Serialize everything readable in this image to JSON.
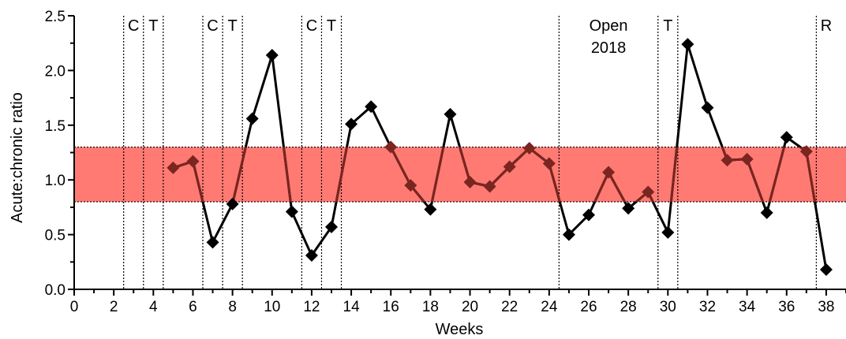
{
  "chart_data": {
    "type": "line",
    "title": "",
    "xlabel": "Weeks",
    "ylabel": "Acute:chronic ratio",
    "xlim": [
      0,
      39
    ],
    "ylim": [
      0,
      2.5
    ],
    "x_ticks": [
      0,
      2,
      4,
      6,
      8,
      10,
      12,
      14,
      16,
      18,
      20,
      22,
      24,
      26,
      28,
      30,
      32,
      34,
      36,
      38
    ],
    "x_tick_labels": [
      "0",
      "2",
      "4",
      "6",
      "8",
      "10",
      "12",
      "14",
      "16",
      "18",
      "20",
      "22",
      "24",
      "26",
      "28",
      "30",
      "32",
      "34",
      "36",
      "38"
    ],
    "y_ticks": [
      0,
      0.5,
      1.0,
      1.5,
      2.0,
      2.5
    ],
    "y_tick_labels": [
      "0.0",
      "0.5",
      "1.0",
      "1.5",
      "2.0",
      "2.5"
    ],
    "grid": false,
    "band": {
      "low": 0.8,
      "high": 1.3,
      "color": "#ff7a73"
    },
    "line_color": "#000000",
    "marker": "diamond",
    "points": [
      {
        "x": 5,
        "y": 1.11
      },
      {
        "x": 6,
        "y": 1.17
      },
      {
        "x": 7,
        "y": 0.43
      },
      {
        "x": 8,
        "y": 0.78
      },
      {
        "x": 9,
        "y": 1.56
      },
      {
        "x": 10,
        "y": 2.14
      },
      {
        "x": 11,
        "y": 0.71
      },
      {
        "x": 12,
        "y": 0.31
      },
      {
        "x": 13,
        "y": 0.57
      },
      {
        "x": 14,
        "y": 1.51
      },
      {
        "x": 15,
        "y": 1.67
      },
      {
        "x": 16,
        "y": 1.3
      },
      {
        "x": 17,
        "y": 0.95
      },
      {
        "x": 18,
        "y": 0.73
      },
      {
        "x": 19,
        "y": 1.6
      },
      {
        "x": 20,
        "y": 0.98
      },
      {
        "x": 21,
        "y": 0.94
      },
      {
        "x": 22,
        "y": 1.12
      },
      {
        "x": 23,
        "y": 1.29
      },
      {
        "x": 24,
        "y": 1.15
      },
      {
        "x": 25,
        "y": 0.5
      },
      {
        "x": 26,
        "y": 0.68
      },
      {
        "x": 27,
        "y": 1.07
      },
      {
        "x": 28,
        "y": 0.74
      },
      {
        "x": 29,
        "y": 0.89
      },
      {
        "x": 30,
        "y": 0.52
      },
      {
        "x": 31,
        "y": 2.24
      },
      {
        "x": 32,
        "y": 1.66
      },
      {
        "x": 33,
        "y": 1.18
      },
      {
        "x": 34,
        "y": 1.19
      },
      {
        "x": 35,
        "y": 0.7
      },
      {
        "x": 36,
        "y": 1.39
      },
      {
        "x": 37,
        "y": 1.26
      },
      {
        "x": 38,
        "y": 0.18
      }
    ],
    "event_lines": [
      2.5,
      3.5,
      4.5,
      6.5,
      7.5,
      8.5,
      11.5,
      12.5,
      13.5,
      24.5,
      29.5,
      30.5,
      37.5
    ],
    "annotations": [
      {
        "x": 3,
        "label": "C"
      },
      {
        "x": 4,
        "label": "T"
      },
      {
        "x": 7,
        "label": "C"
      },
      {
        "x": 8,
        "label": "T"
      },
      {
        "x": 12,
        "label": "C"
      },
      {
        "x": 13,
        "label": "T"
      },
      {
        "x": 27,
        "label": "Open",
        "label2": "2018"
      },
      {
        "x": 30,
        "label": "T"
      },
      {
        "x": 38,
        "label": "R"
      }
    ]
  }
}
